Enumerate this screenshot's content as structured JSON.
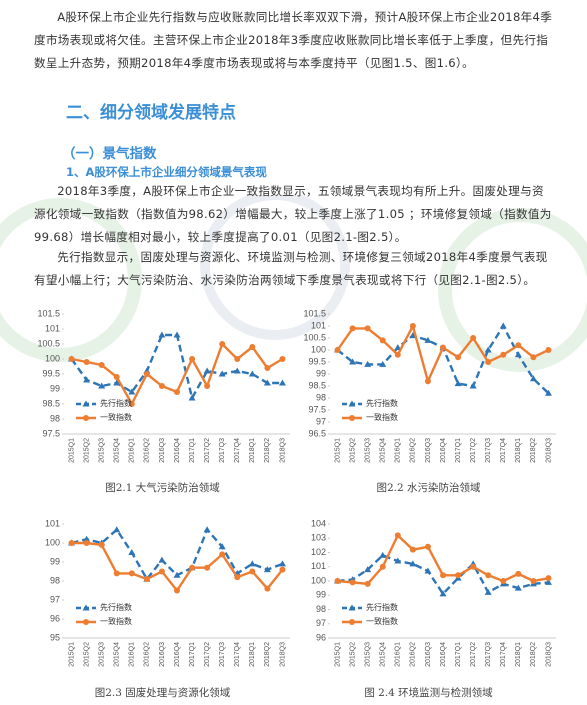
{
  "document": {
    "paragraphs": [
      "A股环保上市企业先行指数与应收账款同比增长率双双下滑，预计A股环保上市企业2018年4季度市场表现或将欠佳。主营环保上市企业2018年3季度应收账款同比增长率低于上季度，但先行指数呈上升态势，预期2018年4季度市场表现或将与本季度持平（见图1.5、图1.6）。",
      "2018年3季度，A股环保上市企业一致指数显示，五领域景气表现均有所上升。固废处理与资源化领域一致指数（指数值为98.62）增幅最大，较上季度上涨了1.05 ；环境修复领域（指数值为99.68）增长幅度相对最小，较上季度提高了0.01（见图2.1-图2.5）。",
      "先行指数显示，固废处理与资源化、环境监测与检测、环境修复三领域2018年4季度景气表现有望小幅上行；大气污染防治、水污染防治两领域下季度景气表现或将下行（见图2.1-图2.5）。"
    ],
    "heading": "二、细分领域发展特点",
    "subheading": "（一）景气指数",
    "subsubheading": "1、A股环保上市企业细分领域景气表现"
  },
  "chart_data": [
    {
      "type": "line",
      "caption": "图2.1 大气污染防治领域",
      "legend": "lower-left",
      "categories": [
        "2015Q1",
        "2015Q2",
        "2015Q3",
        "2015Q4",
        "2016Q1",
        "2016Q2",
        "2016Q3",
        "2016Q4",
        "2017Q1",
        "2017Q2",
        "2017Q3",
        "2017Q4",
        "2018Q1",
        "2018Q2",
        "2018Q3"
      ],
      "series": [
        {
          "name": "先行指数",
          "color": "#2e75b6",
          "line_style": "dashed",
          "marker": "triangle",
          "values": [
            100,
            99.3,
            99.1,
            99.2,
            98.9,
            99.6,
            100.8,
            100.8,
            98.7,
            99.6,
            99.5,
            99.6,
            99.5,
            99.2,
            99.2
          ]
        },
        {
          "name": "一致指数",
          "color": "#ed7d31",
          "line_style": "solid",
          "marker": "circle",
          "values": [
            100,
            99.9,
            99.8,
            99.4,
            98.5,
            99.5,
            99.1,
            98.9,
            100,
            99.1,
            100.5,
            100,
            100.4,
            99.7,
            100
          ]
        }
      ],
      "ylim": [
        97.5,
        101.5
      ],
      "yticks": [
        97.5,
        98,
        98.5,
        99,
        99.5,
        100,
        100.5,
        101,
        101.5
      ]
    },
    {
      "type": "line",
      "caption": "图2.2 水污染防治领域",
      "legend": "lower-left",
      "categories": [
        "2015Q1",
        "2015Q2",
        "2015Q3",
        "2015Q4",
        "2016Q1",
        "2016Q2",
        "2016Q3",
        "2016Q4",
        "2017Q1",
        "2017Q2",
        "2017Q3",
        "2017Q4",
        "2018Q1",
        "2018Q2",
        "2018Q3"
      ],
      "series": [
        {
          "name": "先行指数",
          "color": "#2e75b6",
          "line_style": "dashed",
          "marker": "triangle",
          "values": [
            100,
            99.5,
            99.4,
            99.4,
            100.1,
            100.6,
            100.4,
            100.1,
            98.6,
            98.5,
            100,
            101,
            99.8,
            98.8,
            98.2
          ]
        },
        {
          "name": "一致指数",
          "color": "#ed7d31",
          "line_style": "solid",
          "marker": "circle",
          "values": [
            100,
            100.9,
            100.9,
            100.4,
            99.8,
            101,
            98.7,
            100.1,
            99.7,
            100.5,
            99.5,
            99.8,
            100.2,
            99.7,
            100
          ]
        }
      ],
      "ylim": [
        96.5,
        101.5
      ],
      "yticks": [
        96.5,
        97,
        97.5,
        98,
        98.5,
        99,
        99.5,
        100,
        100.5,
        101,
        101.5
      ]
    },
    {
      "type": "line",
      "caption": "图2.3 固废处理与资源化领域",
      "legend": "lower-left",
      "categories": [
        "2015Q1",
        "2015Q2",
        "2015Q3",
        "2015Q4",
        "2016Q1",
        "2016Q2",
        "2016Q3",
        "2016Q4",
        "2017Q1",
        "2017Q2",
        "2017Q3",
        "2017Q4",
        "2018Q1",
        "2018Q2",
        "2018Q3"
      ],
      "series": [
        {
          "name": "先行指数",
          "color": "#2e75b6",
          "line_style": "dashed",
          "marker": "triangle",
          "values": [
            100,
            100.2,
            100,
            100.7,
            99.5,
            98.1,
            99.1,
            98.3,
            98.7,
            100.7,
            99.8,
            98.4,
            98.9,
            98.6,
            98.9
          ]
        },
        {
          "name": "一致指数",
          "color": "#ed7d31",
          "line_style": "solid",
          "marker": "circle",
          "values": [
            100,
            100,
            99.9,
            98.4,
            98.4,
            98.1,
            98.5,
            97.5,
            98.7,
            98.7,
            99.4,
            98.2,
            98.5,
            97.6,
            98.6
          ]
        }
      ],
      "ylim": [
        95,
        101
      ],
      "yticks": [
        95,
        96,
        97,
        98,
        99,
        100,
        101
      ]
    },
    {
      "type": "line",
      "caption": "图 2.4 环境监测与检测领域",
      "legend": "lower-left",
      "categories": [
        "2015Q1",
        "2015Q2",
        "2015Q3",
        "2015Q4",
        "2016Q1",
        "2016Q2",
        "2016Q3",
        "2016Q4",
        "2017Q1",
        "2017Q2",
        "2017Q3",
        "2017Q4",
        "2018Q1",
        "2018Q2",
        "2018Q3"
      ],
      "series": [
        {
          "name": "先行指数",
          "color": "#2e75b6",
          "line_style": "dashed",
          "marker": "triangle",
          "values": [
            100,
            100.1,
            100.8,
            101.8,
            101.4,
            101.2,
            100.7,
            99.1,
            100.2,
            101.2,
            99.2,
            99.8,
            99.5,
            99.8,
            99.9
          ]
        },
        {
          "name": "一致指数",
          "color": "#ed7d31",
          "line_style": "solid",
          "marker": "circle",
          "values": [
            100,
            99.9,
            99.8,
            101,
            103.2,
            102.2,
            102.4,
            100.4,
            100.4,
            101,
            100.4,
            100,
            100.5,
            100,
            100.2
          ]
        }
      ],
      "ylim": [
        96,
        104
      ],
      "yticks": [
        96,
        97,
        98,
        99,
        100,
        101,
        102,
        103,
        104
      ]
    }
  ]
}
